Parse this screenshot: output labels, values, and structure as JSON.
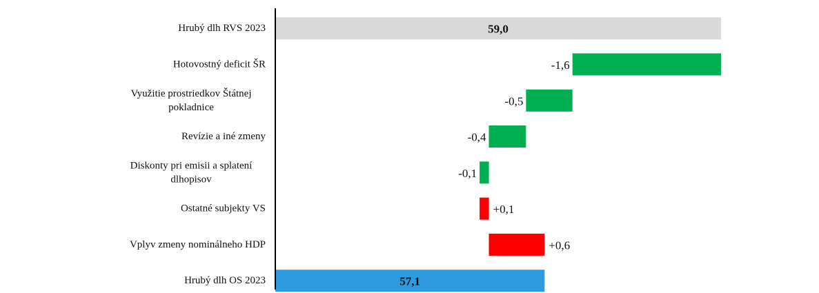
{
  "chart_data": {
    "type": "bar",
    "orientation": "horizontal",
    "style": "waterfall",
    "categories": [
      [
        "Hrubý dlh RVS 2023"
      ],
      [
        "Hotovostný deficit ŠR"
      ],
      [
        "Využitie prostriedkov Štátnej",
        "pokladnice"
      ],
      [
        "Revízie a iné zmeny"
      ],
      [
        "Diskonty pri emisii a splatení",
        "dlhopisov"
      ],
      [
        "Ostatné subjekty VS"
      ],
      [
        "Vplyv zmeny nominálneho HDP"
      ],
      [
        "Hrubý dlh OS 2023"
      ]
    ],
    "bars": [
      {
        "kind": "total",
        "start": 0,
        "end": 59.0,
        "label": "59,0",
        "color": "#d9d9d9"
      },
      {
        "kind": "decrease",
        "start": 59.0,
        "end": 57.4,
        "label": "-1,6",
        "color": "#00b050"
      },
      {
        "kind": "decrease",
        "start": 57.4,
        "end": 56.9,
        "label": "-0,5",
        "color": "#00b050"
      },
      {
        "kind": "decrease",
        "start": 56.9,
        "end": 56.5,
        "label": "-0,4",
        "color": "#00b050"
      },
      {
        "kind": "decrease",
        "start": 56.5,
        "end": 56.4,
        "label": "-0,1",
        "color": "#00b050"
      },
      {
        "kind": "increase",
        "start": 56.4,
        "end": 56.5,
        "label": "+0,1",
        "color": "#ff0000"
      },
      {
        "kind": "increase",
        "start": 56.5,
        "end": 57.1,
        "label": "+0,6",
        "color": "#ff0000"
      },
      {
        "kind": "total",
        "start": 0,
        "end": 57.1,
        "label": "57,1",
        "color": "#2e9bde"
      }
    ],
    "xlim": [
      54.2,
      59.0
    ],
    "title": "",
    "xlabel": "",
    "ylabel": "",
    "grid": false,
    "legend": "none"
  }
}
